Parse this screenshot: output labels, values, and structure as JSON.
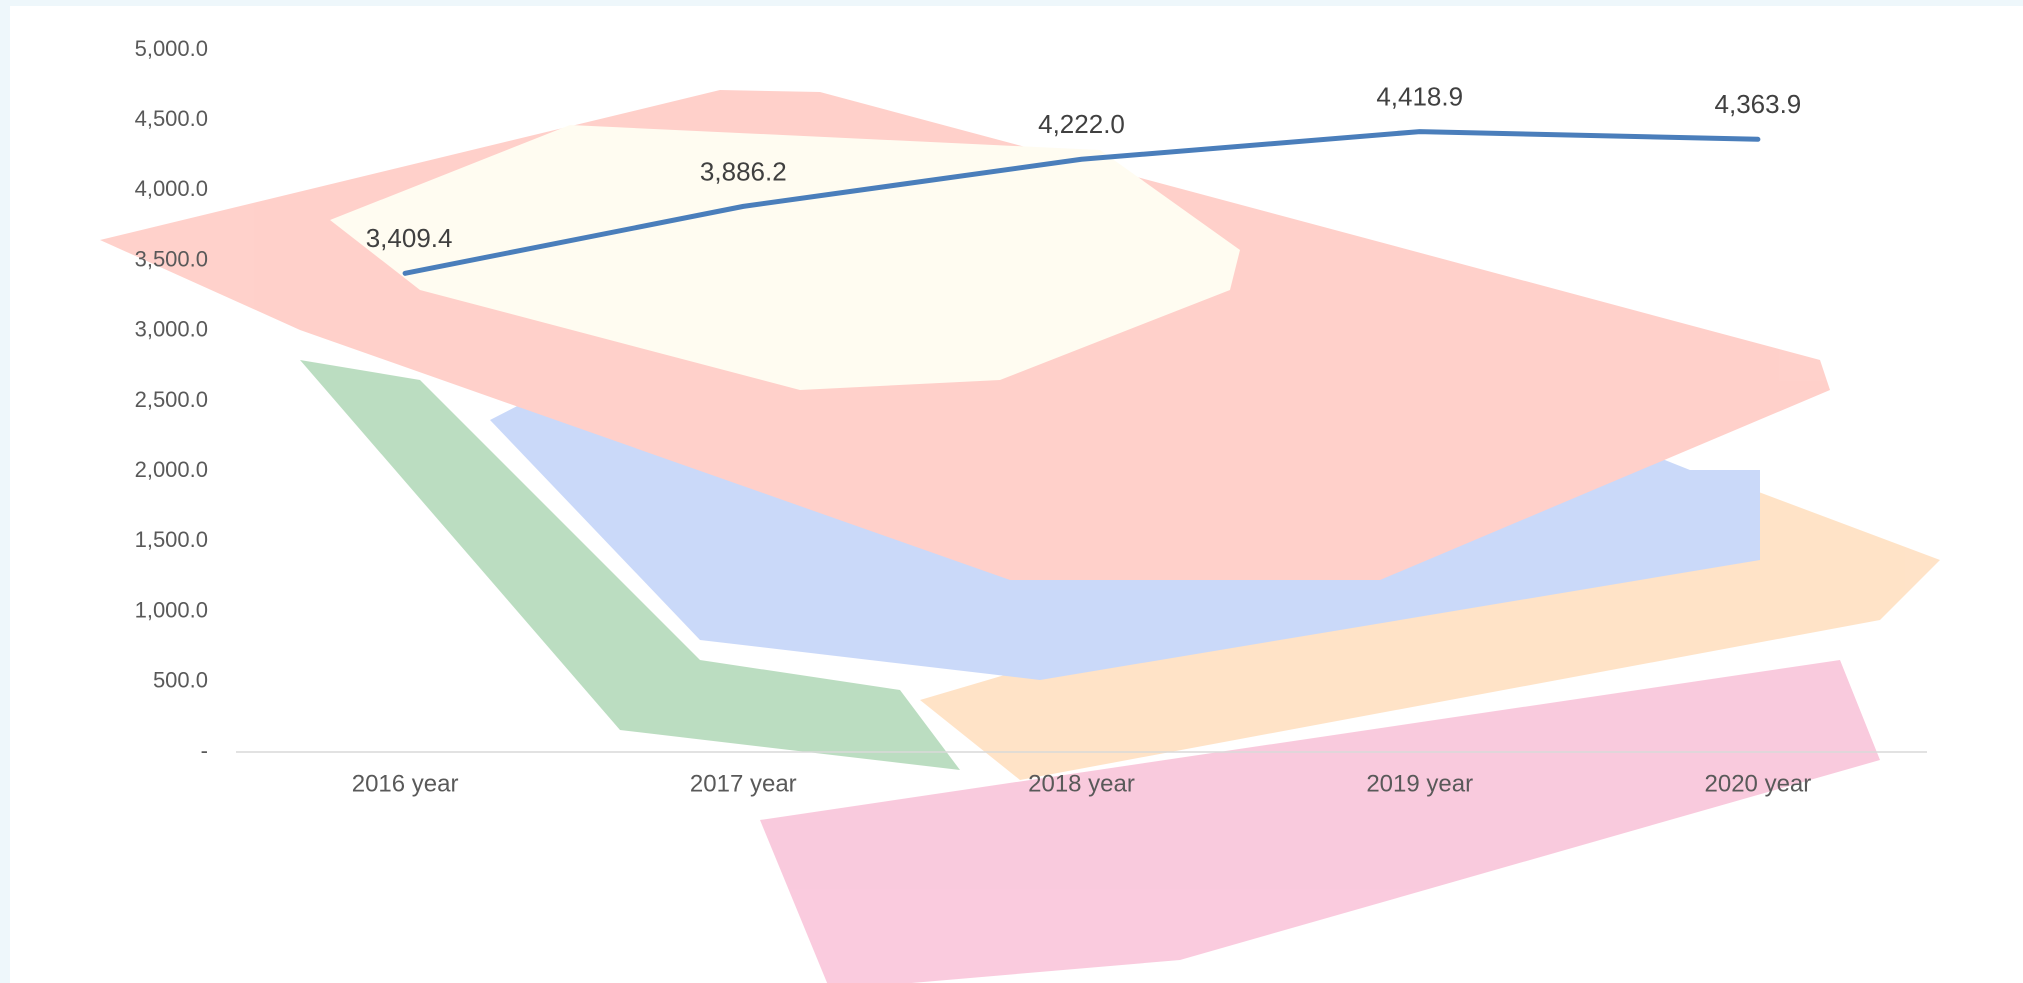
{
  "chart_data": {
    "type": "line",
    "categories": [
      "2016 year",
      "2017 year",
      "2018 year",
      "2019 year",
      "2020 year"
    ],
    "values": [
      3409.4,
      3886.2,
      4222.0,
      4418.9,
      4363.9
    ],
    "value_labels": [
      "3,409.4",
      "3,886.2",
      "4,222.0",
      "4,418.9",
      "4,363.9"
    ],
    "color": "#4a7ebb",
    "ylim": [
      0,
      5000
    ],
    "yticks": [
      {
        "value": 0,
        "label": "-"
      },
      {
        "value": 500,
        "label": "500.0"
      },
      {
        "value": 1000,
        "label": "1,000.0"
      },
      {
        "value": 1500,
        "label": "1,500.0"
      },
      {
        "value": 2000,
        "label": "2,000.0"
      },
      {
        "value": 2500,
        "label": "2,500.0"
      },
      {
        "value": 3000,
        "label": "3,000.0"
      },
      {
        "value": 3500,
        "label": "3,500.0"
      },
      {
        "value": 4000,
        "label": "4,000.0"
      },
      {
        "value": 4500,
        "label": "4,500.0"
      },
      {
        "value": 5000,
        "label": "5,000.0"
      }
    ],
    "grid": false
  }
}
